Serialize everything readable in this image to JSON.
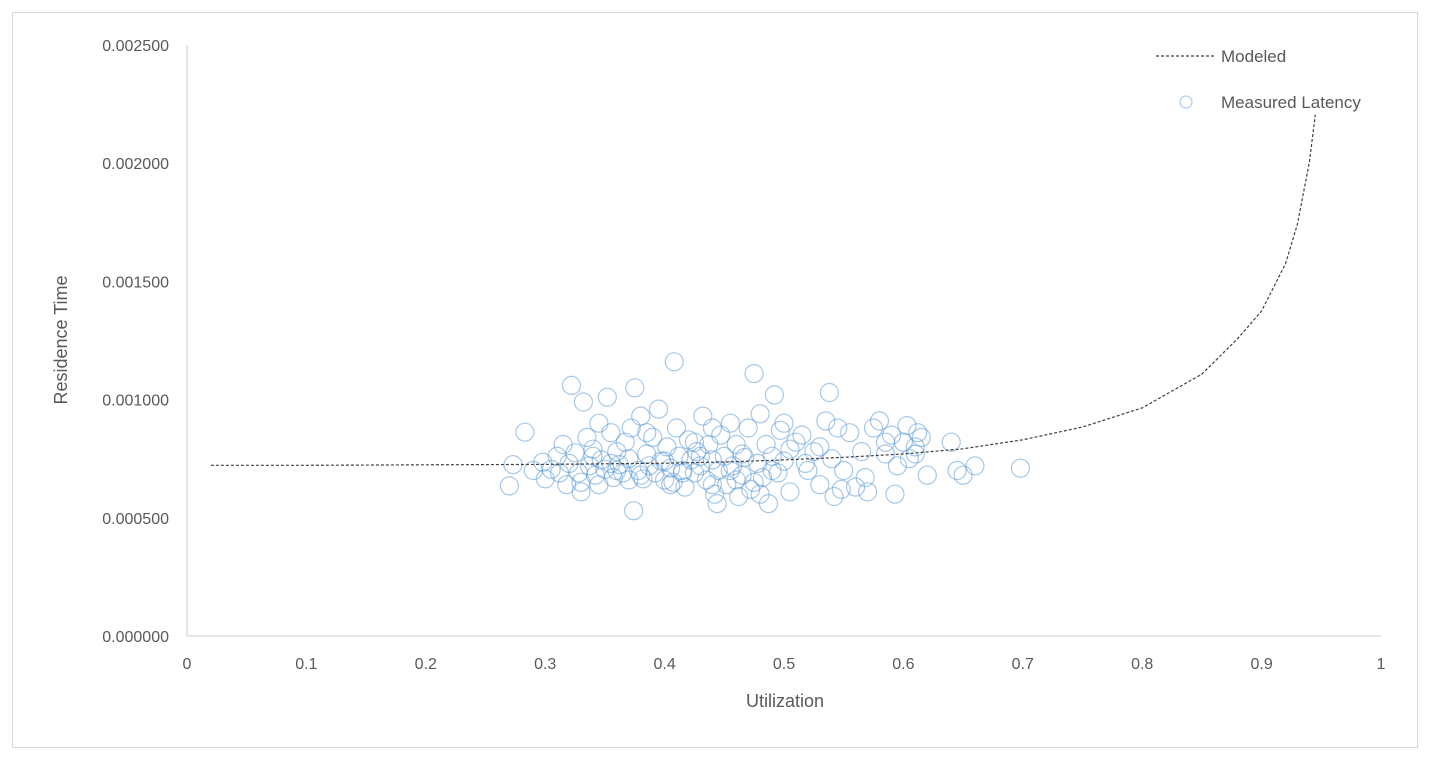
{
  "chart_data": {
    "type": "scatter",
    "xlabel": "Utilization",
    "ylabel": "Residence Time",
    "xlim": [
      0,
      1
    ],
    "ylim": [
      0,
      0.0025
    ],
    "x_ticks": [
      "0",
      "0.1",
      "0.2",
      "0.3",
      "0.4",
      "0.5",
      "0.6",
      "0.7",
      "0.8",
      "0.9",
      "1"
    ],
    "y_ticks": [
      "0.000000",
      "0.000500",
      "0.001000",
      "0.001500",
      "0.002000",
      "0.002500"
    ],
    "grid": false,
    "legend_position": "top-right",
    "colors": {
      "measured": "#5b9bd5",
      "modeled": "#404040",
      "axis": "#d9d9d9",
      "text": "#595959"
    },
    "series": [
      {
        "name": "Modeled",
        "style": "dashed-line",
        "x": [
          0.02,
          0.1,
          0.2,
          0.3,
          0.4,
          0.45,
          0.5,
          0.55,
          0.6,
          0.65,
          0.7,
          0.75,
          0.8,
          0.85,
          0.88,
          0.9,
          0.92,
          0.93,
          0.94,
          0.945
        ],
        "y": [
          0.000722,
          0.000722,
          0.000724,
          0.000726,
          0.000731,
          0.000736,
          0.000745,
          0.000756,
          0.00077,
          0.000792,
          0.00083,
          0.000884,
          0.000965,
          0.001108,
          0.001258,
          0.001375,
          0.001575,
          0.001742,
          0.002005,
          0.002205
        ]
      },
      {
        "name": "Measured Latency",
        "style": "hollow-circle",
        "points": [
          [
            0.27,
            0.000635
          ],
          [
            0.273,
            0.000725
          ],
          [
            0.283,
            0.000862
          ],
          [
            0.29,
            0.0007
          ],
          [
            0.298,
            0.000735
          ],
          [
            0.3,
            0.000665
          ],
          [
            0.305,
            0.000705
          ],
          [
            0.31,
            0.00076
          ],
          [
            0.312,
            0.00069
          ],
          [
            0.315,
            0.00081
          ],
          [
            0.318,
            0.00064
          ],
          [
            0.32,
            0.00073
          ],
          [
            0.322,
            0.00106
          ],
          [
            0.325,
            0.000775
          ],
          [
            0.328,
            0.00069
          ],
          [
            0.33,
            0.00061
          ],
          [
            0.332,
            0.00099
          ],
          [
            0.335,
            0.00084
          ],
          [
            0.337,
            0.00072
          ],
          [
            0.34,
            0.00076
          ],
          [
            0.342,
            0.00068
          ],
          [
            0.345,
            0.0009
          ],
          [
            0.347,
            0.000745
          ],
          [
            0.35,
            0.000705
          ],
          [
            0.352,
            0.00101
          ],
          [
            0.355,
            0.00086
          ],
          [
            0.357,
            0.00067
          ],
          [
            0.36,
            0.00078
          ],
          [
            0.362,
            0.000725
          ],
          [
            0.365,
            0.00069
          ],
          [
            0.367,
            0.00082
          ],
          [
            0.37,
            0.00075
          ],
          [
            0.372,
            0.00088
          ],
          [
            0.374,
            0.00053
          ],
          [
            0.375,
            0.00105
          ],
          [
            0.378,
            0.0007
          ],
          [
            0.38,
            0.00093
          ],
          [
            0.382,
            0.000665
          ],
          [
            0.385,
            0.00077
          ],
          [
            0.387,
            0.00072
          ],
          [
            0.39,
            0.00084
          ],
          [
            0.392,
            0.00069
          ],
          [
            0.395,
            0.00096
          ],
          [
            0.397,
            0.00074
          ],
          [
            0.4,
            0.00066
          ],
          [
            0.402,
            0.0008
          ],
          [
            0.405,
            0.00071
          ],
          [
            0.407,
            0.00065
          ],
          [
            0.408,
            0.00116
          ],
          [
            0.41,
            0.00088
          ],
          [
            0.412,
            0.00076
          ],
          [
            0.415,
            0.0007
          ],
          [
            0.417,
            0.00063
          ],
          [
            0.42,
            0.00083
          ],
          [
            0.422,
            0.000745
          ],
          [
            0.425,
            0.00069
          ],
          [
            0.427,
            0.00078
          ],
          [
            0.43,
            0.00072
          ],
          [
            0.432,
            0.00093
          ],
          [
            0.435,
            0.00066
          ],
          [
            0.437,
            0.00081
          ],
          [
            0.44,
            0.000745
          ],
          [
            0.442,
            0.0006
          ],
          [
            0.444,
            0.00056
          ],
          [
            0.445,
            0.0007
          ],
          [
            0.447,
            0.00085
          ],
          [
            0.45,
            0.00076
          ],
          [
            0.452,
            0.00064
          ],
          [
            0.455,
            0.0009
          ],
          [
            0.457,
            0.00072
          ],
          [
            0.46,
            0.00081
          ],
          [
            0.462,
            0.00059
          ],
          [
            0.465,
            0.00068
          ],
          [
            0.467,
            0.000755
          ],
          [
            0.47,
            0.00088
          ],
          [
            0.472,
            0.00062
          ],
          [
            0.475,
            0.00111
          ],
          [
            0.478,
            0.00073
          ],
          [
            0.48,
            0.00094
          ],
          [
            0.482,
            0.00067
          ],
          [
            0.485,
            0.00081
          ],
          [
            0.487,
            0.00056
          ],
          [
            0.49,
            0.00076
          ],
          [
            0.492,
            0.00102
          ],
          [
            0.495,
            0.00069
          ],
          [
            0.497,
            0.00087
          ],
          [
            0.5,
            0.00074
          ],
          [
            0.505,
            0.00061
          ],
          [
            0.51,
            0.00082
          ],
          [
            0.515,
            0.00085
          ],
          [
            0.52,
            0.0007
          ],
          [
            0.525,
            0.00078
          ],
          [
            0.53,
            0.00064
          ],
          [
            0.535,
            0.00091
          ],
          [
            0.538,
            0.00103
          ],
          [
            0.54,
            0.00075
          ],
          [
            0.542,
            0.00059
          ],
          [
            0.545,
            0.00088
          ],
          [
            0.55,
            0.0007
          ],
          [
            0.555,
            0.00086
          ],
          [
            0.56,
            0.00063
          ],
          [
            0.565,
            0.00078
          ],
          [
            0.57,
            0.00061
          ],
          [
            0.575,
            0.00088
          ],
          [
            0.58,
            0.00091
          ],
          [
            0.585,
            0.00077
          ],
          [
            0.59,
            0.00085
          ],
          [
            0.593,
            0.0006
          ],
          [
            0.595,
            0.00072
          ],
          [
            0.6,
            0.00082
          ],
          [
            0.603,
            0.00089
          ],
          [
            0.605,
            0.00075
          ],
          [
            0.61,
            0.0008
          ],
          [
            0.612,
            0.00086
          ],
          [
            0.615,
            0.00084
          ],
          [
            0.62,
            0.00068
          ],
          [
            0.64,
            0.00082
          ],
          [
            0.645,
            0.0007
          ],
          [
            0.65,
            0.00068
          ],
          [
            0.66,
            0.00072
          ],
          [
            0.698,
            0.00071
          ],
          [
            0.33,
            0.00065
          ],
          [
            0.345,
            0.00064
          ],
          [
            0.36,
            0.0007
          ],
          [
            0.38,
            0.00068
          ],
          [
            0.4,
            0.00074
          ],
          [
            0.415,
            0.00069
          ],
          [
            0.43,
            0.00076
          ],
          [
            0.44,
            0.00064
          ],
          [
            0.455,
            0.0007
          ],
          [
            0.465,
            0.00077
          ],
          [
            0.475,
            0.00065
          ],
          [
            0.49,
            0.0007
          ],
          [
            0.505,
            0.00079
          ],
          [
            0.518,
            0.00073
          ],
          [
            0.53,
            0.0008
          ],
          [
            0.548,
            0.00062
          ],
          [
            0.568,
            0.00067
          ],
          [
            0.585,
            0.00082
          ],
          [
            0.61,
            0.00077
          ],
          [
            0.34,
            0.00079
          ],
          [
            0.355,
            0.00073
          ],
          [
            0.37,
            0.00066
          ],
          [
            0.385,
            0.00086
          ],
          [
            0.405,
            0.00064
          ],
          [
            0.425,
            0.00082
          ],
          [
            0.44,
            0.00088
          ],
          [
            0.46,
            0.00066
          ],
          [
            0.48,
            0.0006
          ],
          [
            0.5,
            0.0009
          ]
        ]
      }
    ]
  }
}
